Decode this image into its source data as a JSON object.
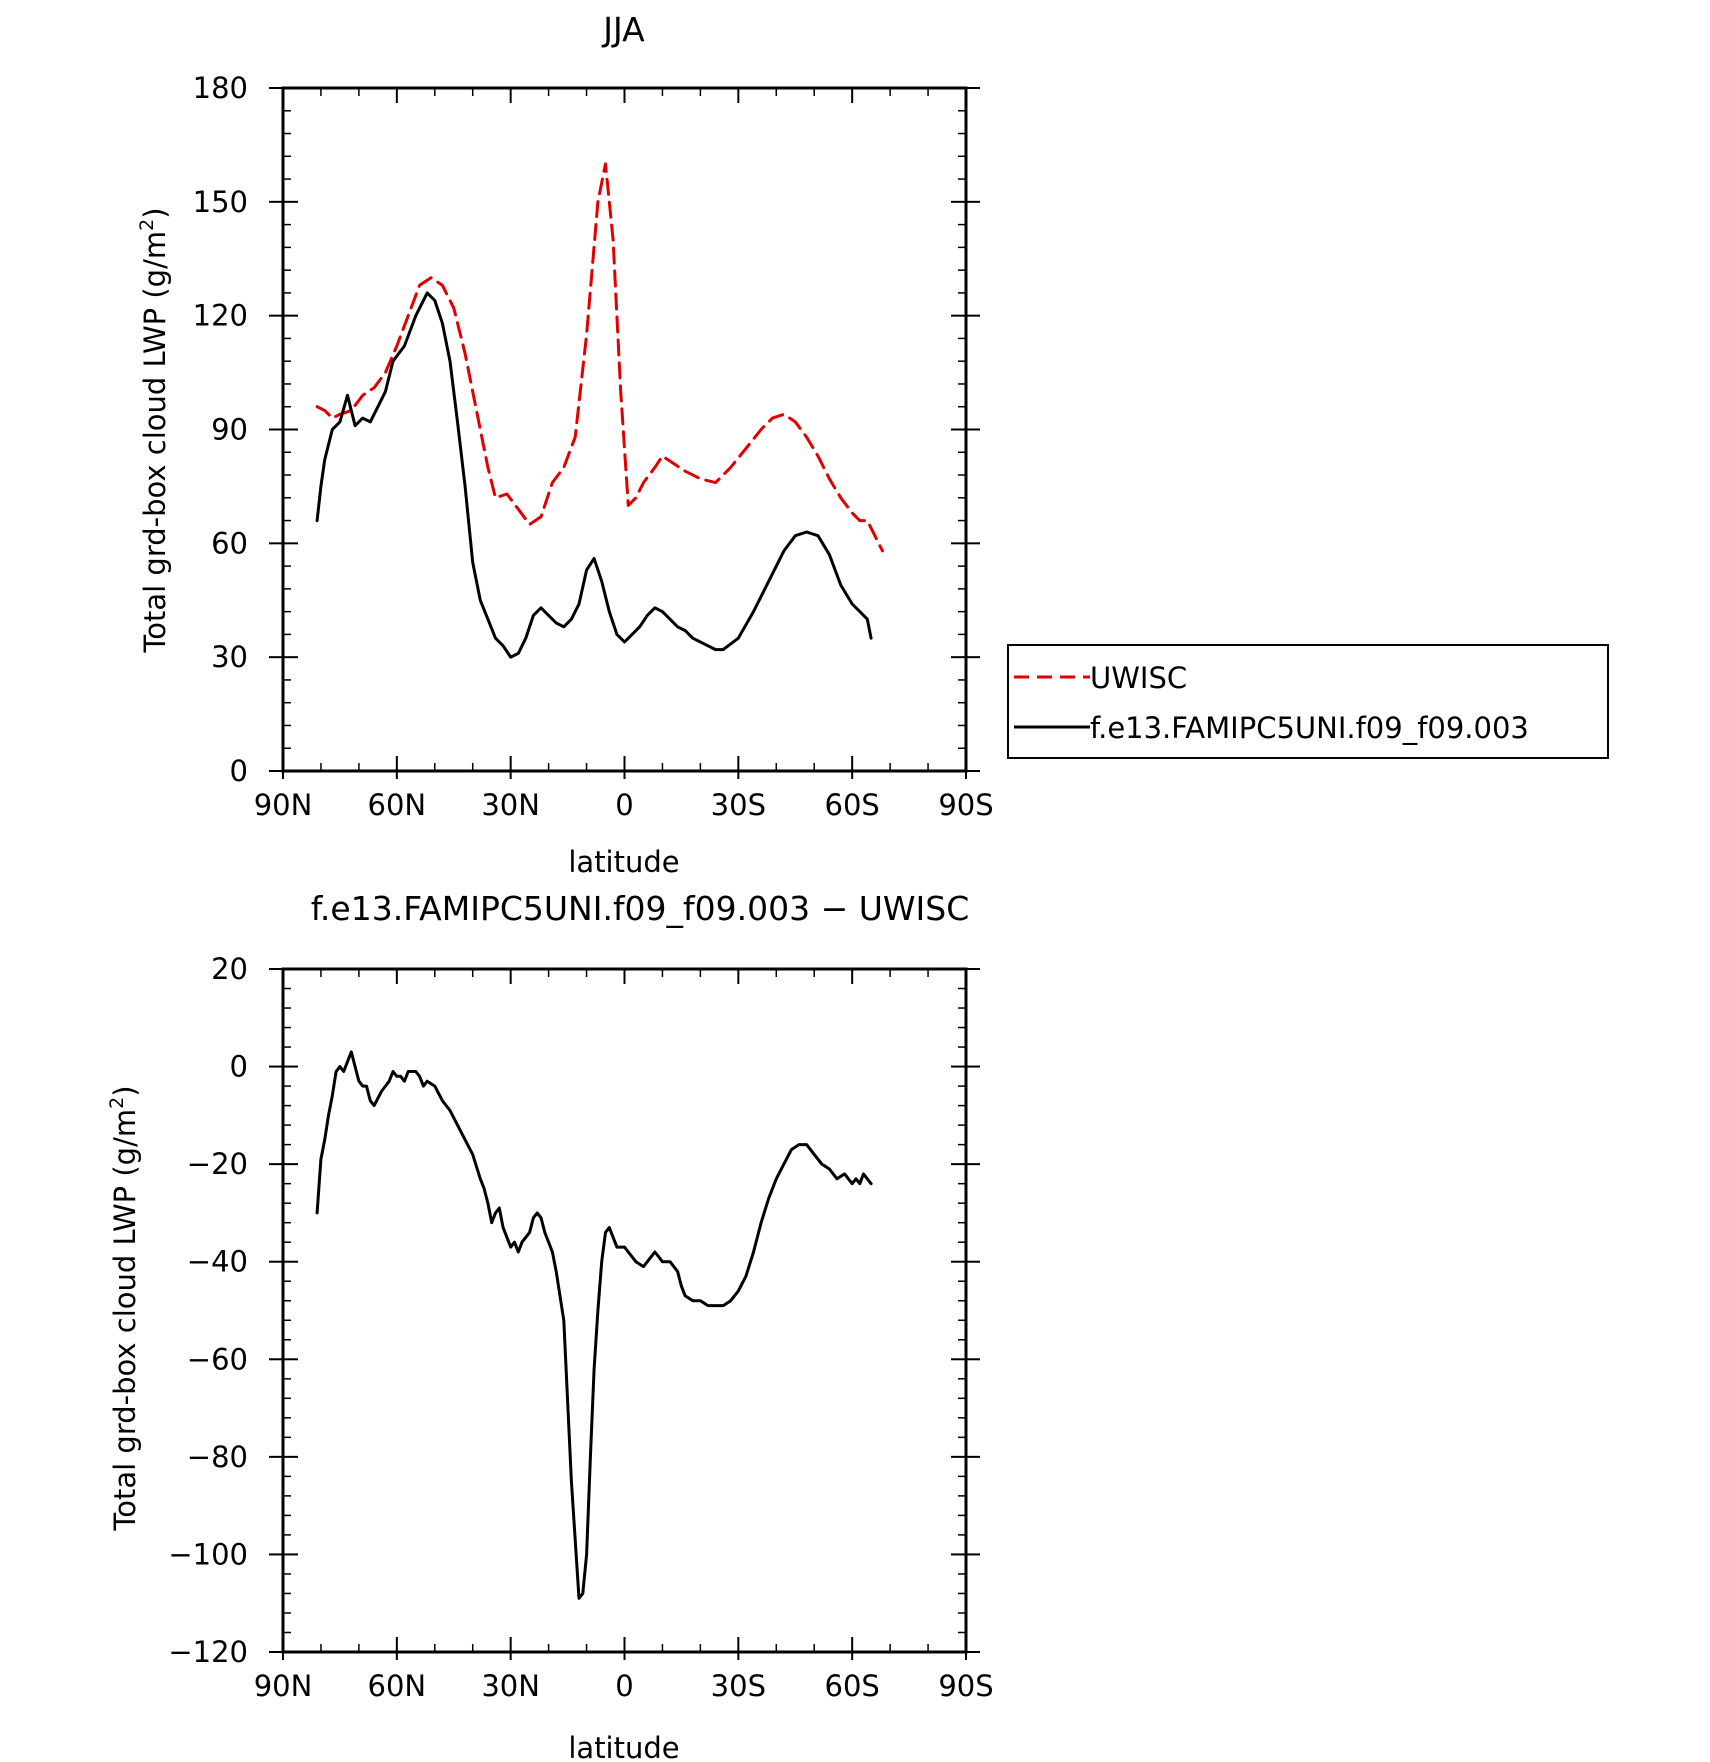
{
  "chart_data": [
    {
      "type": "line",
      "title": "JJA",
      "xlabel": "latitude",
      "ylabel": "Total grd-box cloud LWP (g/m²)",
      "ylabel_main": "Total grd-box cloud LWP (g/m",
      "ylabel_sup": "2",
      "ylabel_close": ")",
      "xlim": [
        90,
        -90
      ],
      "ylim": [
        0,
        180
      ],
      "xticks": [
        90,
        60,
        30,
        0,
        -30,
        -60,
        -90
      ],
      "xtick_labels": [
        "90N",
        "60N",
        "30N",
        "0",
        "30S",
        "60S",
        "90S"
      ],
      "yticks": [
        0,
        30,
        60,
        90,
        120,
        150,
        180
      ],
      "ytick_labels": [
        "0",
        "30",
        "60",
        "90",
        "120",
        "150",
        "180"
      ],
      "legend": {
        "placement": "right",
        "entries": [
          "UWISC",
          "f.e13.FAMIPC5UNI.f09_f09.003"
        ]
      },
      "series": [
        {
          "name": "UWISC",
          "color": "#e00000",
          "dash": true,
          "x": [
            81,
            79,
            77,
            75,
            72,
            69,
            66,
            63,
            60,
            57,
            54,
            51,
            48,
            45,
            42,
            39,
            36,
            34,
            31,
            28,
            25,
            22,
            19,
            16,
            13,
            10,
            7,
            5,
            3,
            1,
            -1,
            -3,
            -5,
            -8,
            -10,
            -13,
            -16,
            -20,
            -24,
            -28,
            -32,
            -36,
            -39,
            -42,
            -45,
            -48,
            -51,
            -54,
            -57,
            -60,
            -62,
            -64,
            -66,
            -68
          ],
          "y": [
            96,
            95,
            93,
            94,
            95,
            99,
            101,
            105,
            112,
            120,
            128,
            130,
            128,
            122,
            110,
            95,
            80,
            72,
            73,
            69,
            65,
            67,
            76,
            80,
            88,
            115,
            150,
            160,
            140,
            100,
            70,
            72,
            76,
            80,
            83,
            81,
            79,
            77,
            76,
            80,
            85,
            90,
            93,
            94,
            92,
            88,
            83,
            77,
            72,
            68,
            66,
            66,
            62,
            58
          ]
        },
        {
          "name": "f.e13.FAMIPC5UNI.f09_f09.003",
          "color": "#000000",
          "dash": false,
          "x": [
            81,
            80,
            79,
            77,
            75,
            73,
            71,
            69,
            67,
            65,
            63,
            61,
            58,
            55,
            52,
            50,
            48,
            46,
            44,
            42,
            40,
            38,
            36,
            34,
            32,
            30,
            28,
            26,
            24,
            22,
            20,
            18,
            16,
            14,
            12,
            10,
            8,
            6,
            4,
            2,
            0,
            -2,
            -4,
            -6,
            -8,
            -10,
            -12,
            -14,
            -16,
            -18,
            -20,
            -22,
            -24,
            -26,
            -30,
            -34,
            -38,
            -42,
            -45,
            -48,
            -51,
            -54,
            -57,
            -60,
            -62,
            -64,
            -65
          ],
          "y": [
            66,
            75,
            82,
            90,
            92,
            99,
            91,
            93,
            92,
            96,
            100,
            108,
            112,
            120,
            126,
            124,
            118,
            108,
            92,
            75,
            55,
            45,
            40,
            35,
            33,
            30,
            31,
            35,
            41,
            43,
            41,
            39,
            38,
            40,
            44,
            53,
            56,
            50,
            42,
            36,
            34,
            36,
            38,
            41,
            43,
            42,
            40,
            38,
            37,
            35,
            34,
            33,
            32,
            32,
            35,
            42,
            50,
            58,
            62,
            63,
            62,
            57,
            49,
            44,
            42,
            40,
            35
          ]
        }
      ]
    },
    {
      "type": "line",
      "title": "f.e13.FAMIPC5UNI.f09_f09.003 − UWISC",
      "xlabel": "latitude",
      "ylabel": "Total grd-box cloud LWP (g/m²)",
      "ylabel_main": "Total grd-box cloud LWP (g/m",
      "ylabel_sup": "2",
      "ylabel_close": ")",
      "xlim": [
        90,
        -90
      ],
      "ylim": [
        -120,
        20
      ],
      "xticks": [
        90,
        60,
        30,
        0,
        -30,
        -60,
        -90
      ],
      "xtick_labels": [
        "90N",
        "60N",
        "30N",
        "0",
        "30S",
        "60S",
        "90S"
      ],
      "yticks": [
        -120,
        -100,
        -80,
        -60,
        -40,
        -20,
        0,
        20
      ],
      "ytick_labels": [
        "−120",
        "−100",
        "−80",
        "−60",
        "−40",
        "−20",
        "0",
        "20"
      ],
      "series": [
        {
          "name": "",
          "color": "#000000",
          "dash": false,
          "x": [
            81,
            80,
            79,
            78,
            77,
            76,
            75,
            74,
            73,
            72,
            71,
            70,
            69,
            68,
            67,
            66,
            64,
            62,
            61,
            60,
            59,
            58,
            57,
            56,
            55,
            54,
            53,
            52,
            50,
            48,
            46,
            44,
            42,
            40,
            38,
            37,
            36,
            35,
            34,
            33,
            32,
            31,
            30,
            29,
            28,
            27,
            26,
            25,
            24,
            23,
            22,
            21,
            20,
            19,
            18,
            16,
            14,
            12,
            11,
            10,
            9,
            8,
            7,
            6,
            5,
            4,
            3,
            2,
            1,
            0,
            -1,
            -2,
            -3,
            -5,
            -7,
            -8,
            -9,
            -10,
            -11,
            -12,
            -13,
            -14,
            -15,
            -16,
            -18,
            -20,
            -22,
            -24,
            -26,
            -28,
            -30,
            -32,
            -34,
            -36,
            -38,
            -40,
            -42,
            -44,
            -46,
            -48,
            -50,
            -52,
            -54,
            -56,
            -58,
            -60,
            -61,
            -62,
            -63,
            -64,
            -65
          ],
          "y": [
            -30,
            -19,
            -15,
            -10,
            -6,
            -1,
            0,
            -1,
            1,
            3,
            0,
            -3,
            -4,
            -4,
            -7,
            -8,
            -5,
            -3,
            -1,
            -2,
            -2,
            -3,
            -1,
            -1,
            -1,
            -2,
            -4,
            -3,
            -4,
            -7,
            -9,
            -12,
            -15,
            -18,
            -23,
            -25,
            -28,
            -32,
            -30,
            -29,
            -33,
            -35,
            -37,
            -36,
            -38,
            -36,
            -35,
            -34,
            -31,
            -30,
            -31,
            -34,
            -36,
            -38,
            -42,
            -52,
            -85,
            -109,
            -108,
            -100,
            -80,
            -62,
            -50,
            -40,
            -34,
            -33,
            -35,
            -37,
            -37,
            -37,
            -38,
            -39,
            -40,
            -41,
            -39,
            -38,
            -39,
            -40,
            -40,
            -40,
            -41,
            -42,
            -45,
            -47,
            -48,
            -48,
            -49,
            -49,
            -49,
            -48,
            -46,
            -43,
            -38,
            -32,
            -27,
            -23,
            -20,
            -17,
            -16,
            -16,
            -18,
            -20,
            -21,
            -23,
            -22,
            -24,
            -23,
            -24,
            -22,
            -23,
            -24
          ]
        }
      ]
    }
  ]
}
